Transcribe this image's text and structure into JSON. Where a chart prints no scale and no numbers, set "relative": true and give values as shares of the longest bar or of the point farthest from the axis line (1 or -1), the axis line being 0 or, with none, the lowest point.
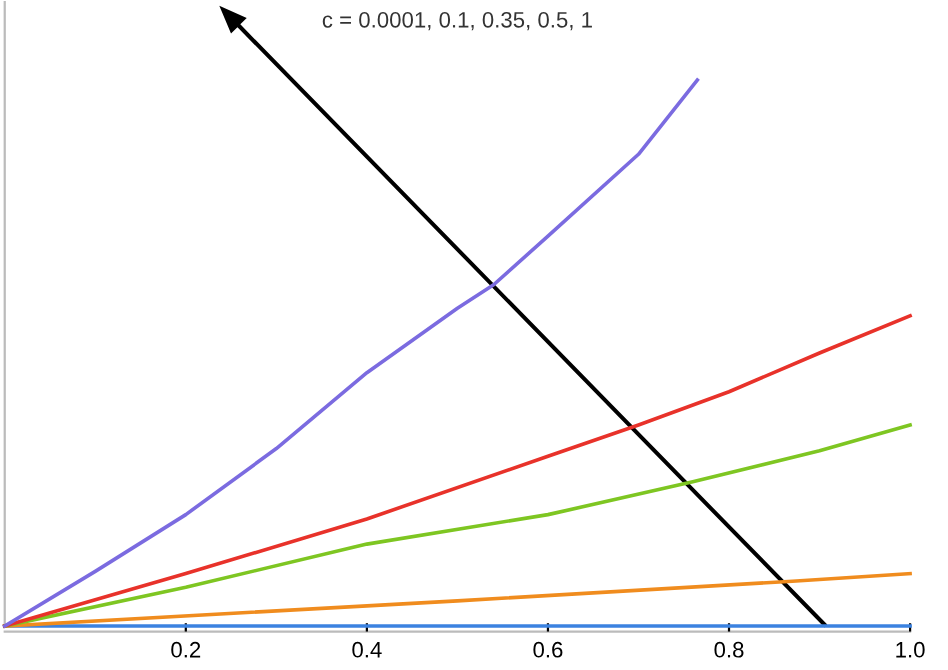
{
  "chart_data": {
    "type": "line",
    "title": "c = 0.0001, 0.1, 0.35, 0.5, 1",
    "relative": true,
    "tick_labels": "x",
    "xlim": [
      0,
      1
    ],
    "xticks": [
      0.2,
      0.4,
      0.6,
      {
        "value": 0.8,
        "label": "0.8"
      },
      {
        "value": 1,
        "label": "1.0"
      }
    ],
    "series": [
      {
        "color": "#3b82e0",
        "x": [
          0,
          0.5,
          1
        ],
        "values": [
          0,
          0,
          0
        ]
      },
      {
        "color": "#f08c1e",
        "x": [
          0,
          0.5,
          0.87,
          1
        ],
        "values": [
          0,
          0.046,
          0.082,
          0.096
        ]
      },
      {
        "color": "#7ec622",
        "x": [
          0,
          0.2,
          0.4,
          0.6,
          0.76,
          0.9,
          1
        ],
        "values": [
          0,
          0.071,
          0.15,
          0.204,
          0.264,
          0.321,
          0.368
        ]
      },
      {
        "color": "#e8322a",
        "x": [
          0,
          0.2,
          0.4,
          0.6,
          0.7,
          0.8,
          0.9,
          1
        ],
        "values": [
          0,
          0.096,
          0.196,
          0.311,
          0.368,
          0.429,
          0.5,
          0.568
        ]
      },
      {
        "color": "#7b6be0",
        "x": [
          0,
          0.1,
          0.2,
          0.3,
          0.4,
          0.5,
          0.54,
          0.6,
          0.7,
          0.765
        ],
        "values": [
          0,
          0.1,
          0.204,
          0.325,
          0.464,
          0.582,
          0.625,
          0.714,
          0.864,
          1
        ]
      }
    ]
  }
}
